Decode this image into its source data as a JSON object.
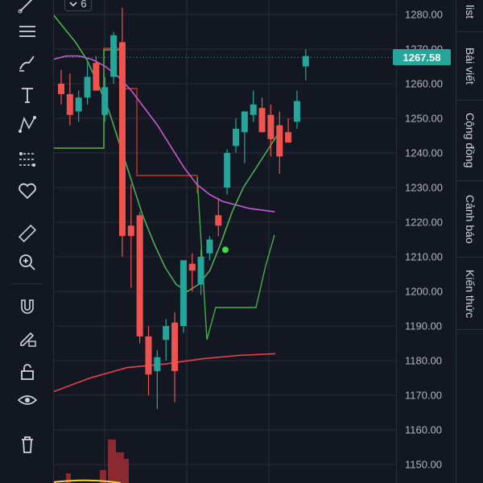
{
  "toolbar": {
    "tools": [
      {
        "icon": "trend-line-icon"
      },
      {
        "icon": "horizontal-lines-icon"
      },
      {
        "icon": "brush-icon"
      },
      {
        "icon": "text-icon"
      },
      {
        "icon": "pattern-icon"
      },
      {
        "icon": "fib-levels-icon"
      },
      {
        "icon": "heart-icon"
      },
      {
        "icon": "ruler-icon"
      },
      {
        "icon": "zoom-in-icon"
      },
      {
        "icon": "magnet-icon"
      },
      {
        "icon": "lock-pencil-icon"
      },
      {
        "icon": "unlock-icon"
      },
      {
        "icon": "eye-icon"
      },
      {
        "icon": "trash-icon"
      }
    ]
  },
  "interval_chip": {
    "label": "6"
  },
  "side_tabs": [
    {
      "label": "list"
    },
    {
      "label": "Bài viết"
    },
    {
      "label": "Cộng đồng"
    },
    {
      "label": "Cảnh báo"
    },
    {
      "label": "Kiến thức"
    }
  ],
  "last_price": {
    "label": "1267.58",
    "value": 1267.58
  },
  "colors": {
    "background": "#131722",
    "up": "#26a69a",
    "down": "#ef5350",
    "ma_green": "#4caf50",
    "ma_purple": "#c659d6",
    "ma_red": "#e8414a",
    "step_green": "#43b047",
    "step_brown": "#c0391b",
    "grid": "#2a2e39",
    "volume": "#8a2a30",
    "yellow": "#f5d33a"
  },
  "chart_data": {
    "type": "candlestick",
    "ylim": [
      1146,
      1284
    ],
    "y_ticks": [
      "1280.00",
      "1270.00",
      "1260.00",
      "1250.00",
      "1240.00",
      "1230.00",
      "1220.00",
      "1210.00",
      "1200.00",
      "1190.00",
      "1180.00",
      "1170.00",
      "1160.00",
      "1150.00"
    ],
    "candles": [
      {
        "o": 1260,
        "h": 1264,
        "l": 1254,
        "c": 1257
      },
      {
        "o": 1257,
        "h": 1263,
        "l": 1248,
        "c": 1251
      },
      {
        "o": 1252,
        "h": 1258,
        "l": 1249,
        "c": 1256
      },
      {
        "o": 1256,
        "h": 1266,
        "l": 1254,
        "c": 1262
      },
      {
        "o": 1266,
        "h": 1268,
        "l": 1258,
        "c": 1258
      },
      {
        "o": 1251,
        "h": 1262,
        "l": 1249,
        "c": 1259
      },
      {
        "o": 1262,
        "h": 1275,
        "l": 1260,
        "c": 1274
      },
      {
        "o": 1272,
        "h": 1282,
        "l": 1210,
        "c": 1216
      },
      {
        "o": 1219,
        "h": 1231,
        "l": 1201,
        "c": 1216
      },
      {
        "o": 1222,
        "h": 1223,
        "l": 1185,
        "c": 1187
      },
      {
        "o": 1187,
        "h": 1190,
        "l": 1170,
        "c": 1176
      },
      {
        "o": 1177,
        "h": 1183,
        "l": 1166,
        "c": 1181
      },
      {
        "o": 1186,
        "h": 1192,
        "l": 1180,
        "c": 1190
      },
      {
        "o": 1191,
        "h": 1194,
        "l": 1168,
        "c": 1177
      },
      {
        "o": 1190,
        "h": 1209,
        "l": 1188,
        "c": 1209
      },
      {
        "o": 1208,
        "h": 1211,
        "l": 1200,
        "c": 1206
      },
      {
        "o": 1202,
        "h": 1212,
        "l": 1199,
        "c": 1210
      },
      {
        "o": 1211,
        "h": 1216,
        "l": 1209,
        "c": 1215
      },
      {
        "o": 1222,
        "h": 1227,
        "l": 1216,
        "c": 1219
      },
      {
        "o": 1230,
        "h": 1241,
        "l": 1228,
        "c": 1240
      },
      {
        "o": 1242,
        "h": 1250,
        "l": 1240,
        "c": 1247
      },
      {
        "o": 1246,
        "h": 1252,
        "l": 1237,
        "c": 1252
      },
      {
        "o": 1251,
        "h": 1258,
        "l": 1249,
        "c": 1254
      },
      {
        "o": 1253,
        "h": 1256,
        "l": 1246,
        "c": 1246
      },
      {
        "o": 1251,
        "h": 1254,
        "l": 1239,
        "c": 1244
      },
      {
        "o": 1248,
        "h": 1252,
        "l": 1234,
        "c": 1239
      },
      {
        "o": 1246,
        "h": 1250,
        "l": 1243,
        "c": 1243
      },
      {
        "o": 1249,
        "h": 1258,
        "l": 1247,
        "c": 1255
      },
      {
        "o": 1265,
        "h": 1270,
        "l": 1261,
        "c": 1268
      }
    ],
    "dot": {
      "index": 18.8,
      "value": 1212
    },
    "ma_green": [
      1280,
      1276,
      1272,
      1267,
      1260,
      1252,
      1242,
      1232,
      1222,
      1214,
      1207,
      1202,
      1200,
      1202,
      1206,
      1214,
      1223,
      1230,
      1235,
      1240,
      1245
    ],
    "ma_purple": [
      1267,
      1268,
      1268,
      1267,
      1265,
      1262,
      1258,
      1253,
      1248,
      1242,
      1236,
      1231,
      1228,
      1226,
      1225,
      1224,
      1223.5,
      1223
    ],
    "ma_red": [
      1171,
      1175,
      1178,
      1179,
      1180.5,
      1181.5,
      1182
    ]
  }
}
